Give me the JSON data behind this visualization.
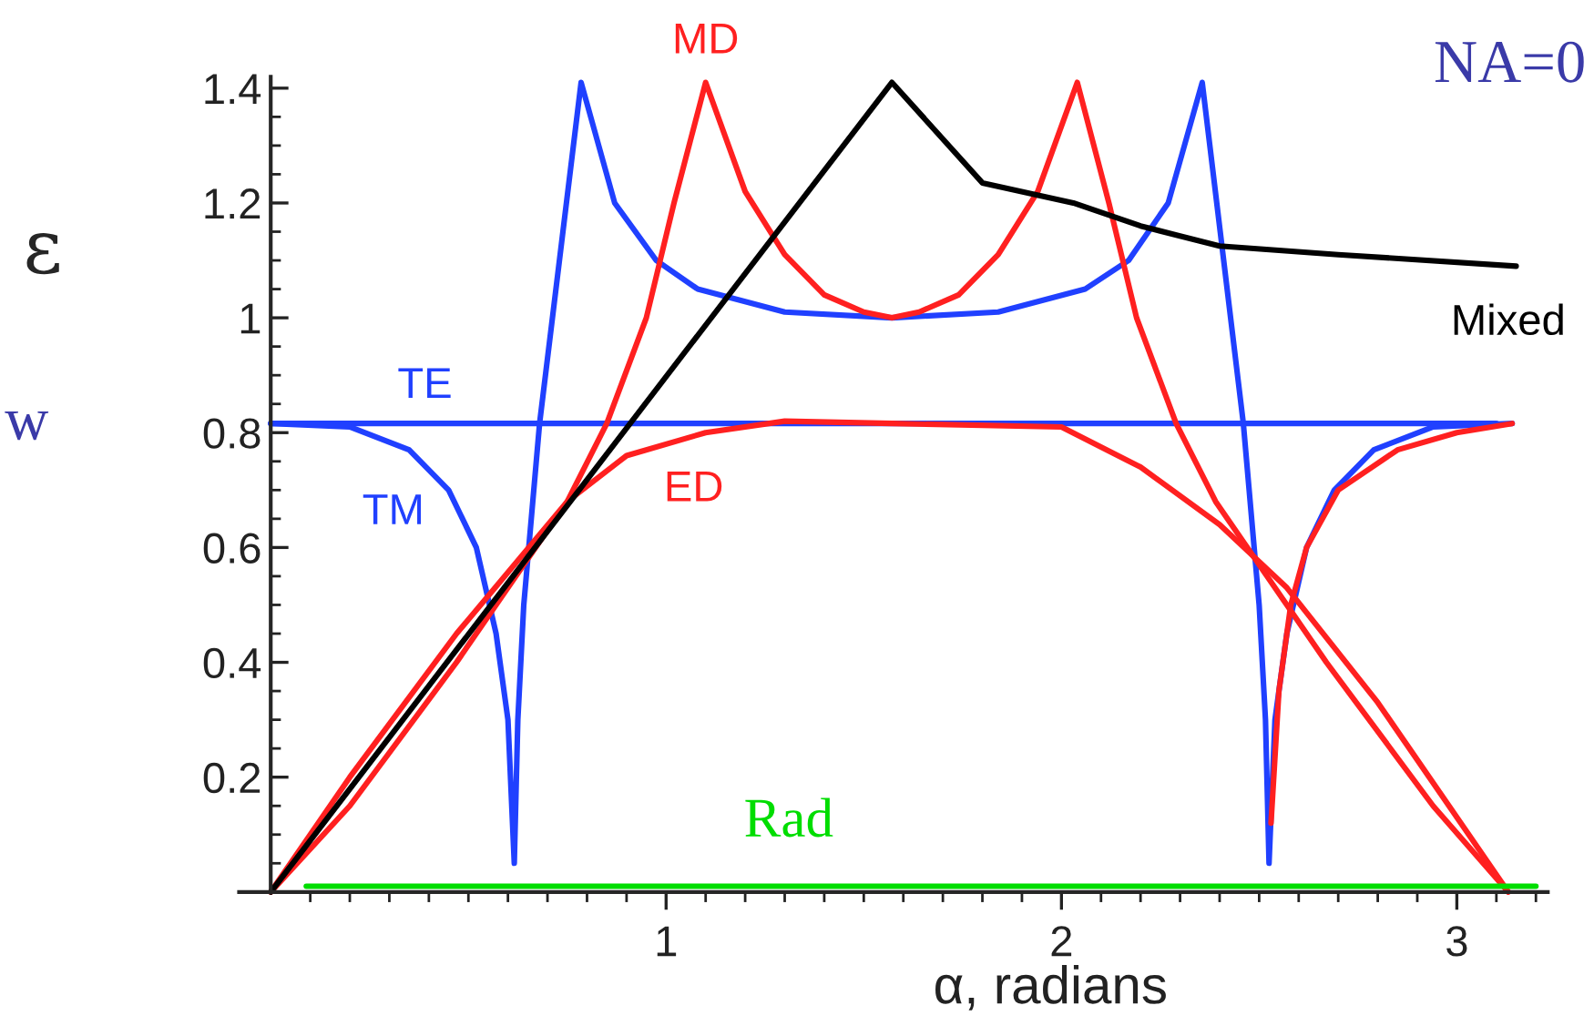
{
  "chart_data": {
    "type": "line",
    "xlabel": "α, radians",
    "ylabel": "ε",
    "annotations": [
      "NA=0",
      "w"
    ],
    "xlim": [
      -0.08,
      3.23
    ],
    "ylim": [
      0,
      1.42
    ],
    "xticks": [
      1,
      2,
      3,
      {
        "value": 0.1,
        "label": null
      },
      {
        "value": 0.2,
        "label": null
      },
      {
        "value": 0.3,
        "label": null
      },
      {
        "value": 0.4,
        "label": null
      },
      {
        "value": 0.5,
        "label": null
      },
      {
        "value": 0.6,
        "label": null
      },
      {
        "value": 0.7,
        "label": null
      },
      {
        "value": 0.8,
        "label": null
      },
      {
        "value": 0.9,
        "label": null
      },
      {
        "value": 1.1,
        "label": null
      },
      {
        "value": 1.2,
        "label": null
      },
      {
        "value": 1.3,
        "label": null
      },
      {
        "value": 1.4,
        "label": null
      },
      {
        "value": 1.5,
        "label": null
      },
      {
        "value": 1.6,
        "label": null
      },
      {
        "value": 1.7,
        "label": null
      },
      {
        "value": 1.8,
        "label": null
      },
      {
        "value": 1.9,
        "label": null
      },
      {
        "value": 2.1,
        "label": null
      },
      {
        "value": 2.2,
        "label": null
      },
      {
        "value": 2.3,
        "label": null
      },
      {
        "value": 2.4,
        "label": null
      },
      {
        "value": 2.5,
        "label": null
      },
      {
        "value": 2.6,
        "label": null
      },
      {
        "value": 2.7,
        "label": null
      },
      {
        "value": 2.8,
        "label": null
      },
      {
        "value": 2.9,
        "label": null
      },
      {
        "value": 3.1,
        "label": null
      },
      {
        "value": 3.2,
        "label": null
      }
    ],
    "yticks": [
      0.2,
      0.4,
      0.6,
      0.8,
      1,
      1.2,
      1.4,
      {
        "value": 0.05,
        "label": null
      },
      {
        "value": 0.1,
        "label": null
      },
      {
        "value": 0.15,
        "label": null
      },
      {
        "value": 0.25,
        "label": null
      },
      {
        "value": 0.3,
        "label": null
      },
      {
        "value": 0.35,
        "label": null
      },
      {
        "value": 0.45,
        "label": null
      },
      {
        "value": 0.5,
        "label": null
      },
      {
        "value": 0.55,
        "label": null
      },
      {
        "value": 0.65,
        "label": null
      },
      {
        "value": 0.7,
        "label": null
      },
      {
        "value": 0.75,
        "label": null
      },
      {
        "value": 0.85,
        "label": null
      },
      {
        "value": 0.9,
        "label": null
      },
      {
        "value": 0.95,
        "label": null
      },
      {
        "value": 1.05,
        "label": null
      },
      {
        "value": 1.1,
        "label": null
      },
      {
        "value": 1.15,
        "label": null
      },
      {
        "value": 1.25,
        "label": null
      },
      {
        "value": 1.3,
        "label": null
      },
      {
        "value": 1.35,
        "label": null
      }
    ],
    "grid": false,
    "legend": false,
    "marker": "none",
    "line_style": "solid",
    "series": [
      {
        "name": "TE",
        "color": "#2040ff",
        "x": [
          0,
          3.1
        ],
        "values": [
          0.816,
          0.816
        ]
      },
      {
        "name": "TM",
        "color": "#2040ff",
        "x": [
          0,
          0.2,
          0.35,
          0.45,
          0.52,
          0.57,
          0.6,
          0.616,
          0.625,
          0.64,
          0.68,
          0.785,
          0.87,
          0.975,
          1.08,
          1.3,
          1.571,
          1.84,
          2.06,
          2.17,
          2.27,
          2.356,
          2.46,
          2.5,
          2.516,
          2.525,
          2.54,
          2.57,
          2.62,
          2.69,
          2.79,
          2.94,
          3.14
        ],
        "values": [
          0.816,
          0.81,
          0.77,
          0.7,
          0.6,
          0.45,
          0.3,
          0.05,
          0.3,
          0.5,
          0.816,
          1.41,
          1.2,
          1.1,
          1.05,
          1.01,
          1.0,
          1.01,
          1.05,
          1.1,
          1.2,
          1.41,
          0.816,
          0.5,
          0.3,
          0.05,
          0.3,
          0.45,
          0.6,
          0.7,
          0.77,
          0.81,
          0.816
        ]
      },
      {
        "name": "MD",
        "color": "#ff2020",
        "x": [
          0,
          0.2,
          0.47,
          0.75,
          0.85,
          0.95,
          1.02,
          1.1,
          1.2,
          1.3,
          1.4,
          1.5,
          1.571,
          1.64,
          1.74,
          1.84,
          1.94,
          2.04,
          2.12,
          2.19,
          2.29,
          2.39,
          2.67,
          2.94,
          3.13
        ],
        "values": [
          0,
          0.15,
          0.4,
          0.68,
          0.816,
          1.0,
          1.2,
          1.41,
          1.22,
          1.11,
          1.04,
          1.01,
          1.0,
          1.01,
          1.04,
          1.11,
          1.22,
          1.41,
          1.2,
          1.0,
          0.816,
          0.68,
          0.4,
          0.15,
          0
        ]
      },
      {
        "name": "ED",
        "color": "#ff2020",
        "x": [
          0,
          0.2,
          0.47,
          0.75,
          0.9,
          1.1,
          1.3,
          1.571,
          2.0,
          2.2,
          2.4,
          2.57,
          2.8,
          3.0,
          3.13
        ],
        "values": [
          0,
          0.2,
          0.45,
          0.68,
          0.76,
          0.8,
          0.82,
          0.816,
          0.81,
          0.74,
          0.64,
          0.53,
          0.33,
          0.13,
          0
        ]
      },
      {
        "color": "#ff2020",
        "x": [
          2.53,
          2.55,
          2.58,
          2.62,
          2.7,
          2.85,
          3.0,
          3.14
        ],
        "values": [
          0.12,
          0.35,
          0.5,
          0.6,
          0.7,
          0.77,
          0.8,
          0.816
        ]
      },
      {
        "name": "Mixed",
        "color": "#000000",
        "x": [
          0,
          1.571,
          1.8,
          2.03,
          2.2,
          2.4,
          2.7,
          3.15
        ],
        "values": [
          0,
          1.41,
          1.235,
          1.2,
          1.16,
          1.125,
          1.11,
          1.09
        ]
      },
      {
        "name": "Rad",
        "color": "#00dd00",
        "x": [
          0.09,
          3.2
        ],
        "values": [
          0.01,
          0.01
        ]
      }
    ]
  }
}
